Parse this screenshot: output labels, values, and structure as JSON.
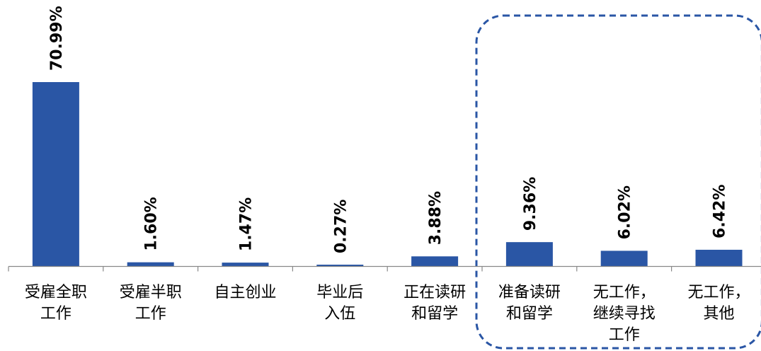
{
  "chart_data": {
    "type": "bar",
    "categories": [
      [
        "受雇全职",
        "工作"
      ],
      [
        "受雇半职",
        "工作"
      ],
      [
        "自主创业"
      ],
      [
        "毕业后",
        "入伍"
      ],
      [
        "正在读研",
        "和留学"
      ],
      [
        "准备读研",
        "和留学"
      ],
      [
        "无工作，",
        "继续寻找",
        "工作"
      ],
      [
        "无工作，",
        "其他"
      ]
    ],
    "values": [
      70.99,
      1.6,
      1.47,
      0.27,
      3.88,
      9.36,
      6.02,
      6.42
    ],
    "value_labels": [
      "70.99%",
      "1.60%",
      "1.47%",
      "0.27%",
      "3.88%",
      "9.36%",
      "6.02%",
      "6.42%"
    ],
    "title": "",
    "xlabel": "",
    "ylabel": "",
    "ylim": [
      0,
      72
    ],
    "grid": false,
    "legend": "none",
    "bar_color": "#2a56a5",
    "highlight": {
      "style": "dashed rounded box",
      "color": "#2a56a5",
      "categories_from": 5,
      "categories_to": 7
    }
  }
}
